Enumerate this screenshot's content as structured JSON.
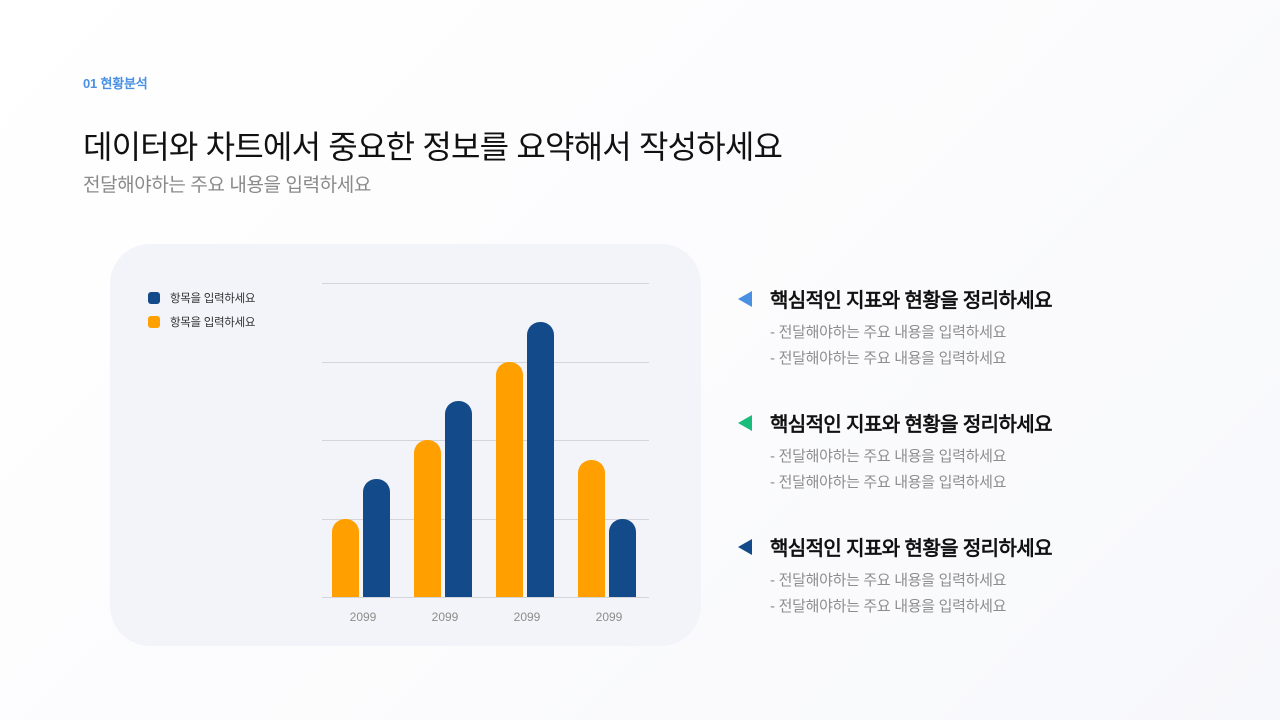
{
  "header": {
    "section_label": "01 현황분석",
    "title": "데이터와 차트에서 중요한 정보를 요약해서 작성하세요",
    "subtitle": "전달해야하는 주요 내용을 입력하세요"
  },
  "colors": {
    "accent_blue": "#4a90e2",
    "series_navy": "#134b8a",
    "series_orange": "#ffa000",
    "marker_green": "#1abc7b",
    "marker_navy": "#134b8a"
  },
  "chart_data": {
    "type": "bar",
    "title": "",
    "xlabel": "",
    "ylabel": "",
    "categories": [
      "2099",
      "2099",
      "2099",
      "2099"
    ],
    "series": [
      {
        "name": "항목을 입력하세요",
        "color": "#ffa000",
        "values": [
          2,
          4,
          6,
          3.5
        ]
      },
      {
        "name": "항목을 입력하세요",
        "color": "#134b8a",
        "values": [
          3,
          5,
          7,
          2
        ]
      }
    ],
    "ylim": [
      0,
      8
    ],
    "grid": true,
    "gridlines": 5,
    "legend_position": "top-left",
    "y_tick_labels_visible": false
  },
  "legend": [
    {
      "label": "항목을 입력하세요",
      "color": "#134b8a"
    },
    {
      "label": "항목을 입력하세요",
      "color": "#ffa000"
    }
  ],
  "key_points": [
    {
      "marker_color": "#4a90e2",
      "title": "핵심적인 지표와 현황을 정리하세요",
      "lines": [
        "- 전달해야하는 주요 내용을 입력하세요",
        "- 전달해야하는 주요 내용을 입력하세요"
      ]
    },
    {
      "marker_color": "#1abc7b",
      "title": "핵심적인 지표와 현황을 정리하세요",
      "lines": [
        "- 전달해야하는 주요 내용을 입력하세요",
        "- 전달해야하는 주요 내용을 입력하세요"
      ]
    },
    {
      "marker_color": "#134b8a",
      "title": "핵심적인 지표와 현황을 정리하세요",
      "lines": [
        "- 전달해야하는 주요 내용을 입력하세요",
        "- 전달해야하는 주요 내용을 입력하세요"
      ]
    }
  ]
}
